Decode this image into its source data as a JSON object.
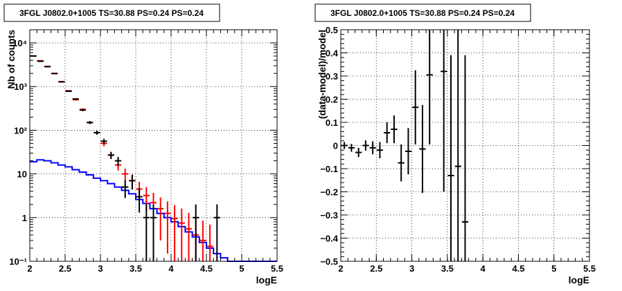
{
  "chart_data": [
    {
      "type": "scatter",
      "title": "3FGL J0802.0+1005 TS=30.88 PS=0.24 PS=0.24",
      "xlabel": "logE",
      "ylabel": "Nb of counts",
      "xlim": [
        2,
        5.5
      ],
      "ylim": [
        0.1,
        20000
      ],
      "yscale": "log",
      "grid": true,
      "xticks": [
        "2",
        "2.5",
        "3",
        "3.5",
        "4",
        "4.5",
        "5",
        "5.5"
      ],
      "yticks": [
        {
          "value": 0.1,
          "label": "10⁻¹"
        },
        {
          "value": 1,
          "label": "1"
        },
        {
          "value": 10,
          "label": "10"
        },
        {
          "value": 100,
          "label": "10²"
        },
        {
          "value": 1000,
          "label": "10³"
        },
        {
          "value": 10000,
          "label": "10⁴"
        }
      ],
      "series": [
        {
          "color": "#0000ff",
          "style": "step",
          "x": [
            2.0,
            2.1,
            2.2,
            2.3,
            2.4,
            2.5,
            2.6,
            2.7,
            2.8,
            2.9,
            3.0,
            3.1,
            3.2,
            3.3,
            3.4,
            3.5,
            3.6,
            3.7,
            3.8,
            3.9,
            4.0,
            4.1,
            4.2,
            4.3,
            4.4,
            4.5,
            4.6,
            4.7,
            4.8,
            4.9,
            5.0,
            5.1,
            5.2,
            5.3,
            5.4
          ],
          "values": [
            19,
            21,
            20,
            18,
            16,
            14.5,
            12.5,
            11,
            9.5,
            8,
            7,
            6,
            5,
            4.2,
            3.5,
            2.6,
            2.1,
            1.6,
            1.25,
            1.0,
            0.8,
            0.62,
            0.47,
            0.36,
            0.27,
            0.2,
            0.15,
            0.12,
            0.1,
            0.1,
            0.1,
            0.1,
            0.1,
            0.1,
            0.1
          ]
        },
        {
          "color": "#ff0000",
          "style": "errorbar",
          "x": [
            2.05,
            2.15,
            2.25,
            2.35,
            2.45,
            2.55,
            2.65,
            2.75,
            2.85,
            2.95,
            3.05,
            3.15,
            3.25,
            3.35,
            3.45,
            3.55,
            3.65,
            3.75,
            3.85,
            3.95,
            4.05,
            4.15,
            4.25,
            4.35,
            4.45,
            4.55
          ],
          "values": [
            5000,
            3900,
            2900,
            2000,
            1300,
            800,
            500,
            300,
            150,
            88,
            50,
            27,
            16,
            10,
            7,
            4.5,
            3.2,
            2.2,
            1.6,
            1.25,
            0.95,
            0.75,
            0.55,
            0.4,
            0.3,
            0.22
          ],
          "errors": [
            70,
            62,
            54,
            45,
            36,
            28,
            22,
            17,
            12,
            9,
            7,
            5,
            4,
            3.2,
            2.6,
            2.1,
            1.8,
            1.5,
            1.3,
            1.1,
            0.98,
            0.87,
            0.74,
            0.63,
            0.55,
            0.47
          ]
        },
        {
          "color": "#000000",
          "style": "errorbar",
          "x": [
            2.05,
            2.15,
            2.25,
            2.35,
            2.45,
            2.55,
            2.65,
            2.75,
            2.85,
            2.95,
            3.05,
            3.15,
            3.25,
            3.35,
            3.45,
            3.55,
            3.65,
            3.75,
            4.35,
            4.65
          ],
          "values": [
            5000,
            3800,
            2850,
            1980,
            1280,
            780,
            520,
            290,
            150,
            88,
            56,
            27,
            20,
            5,
            7,
            3,
            1,
            1,
            1,
            1
          ],
          "errors": [
            70,
            62,
            53,
            44,
            36,
            28,
            23,
            17,
            12,
            9,
            7.5,
            5,
            4.5,
            2.2,
            2.6,
            1.7,
            1,
            1,
            1,
            1
          ]
        }
      ]
    },
    {
      "type": "scatter",
      "title": "3FGL J0802.0+1005 TS=30.88 PS=0.24 PS=0.24",
      "xlabel": "logE",
      "ylabel": "(data-model)/model",
      "xlim": [
        2,
        5.5
      ],
      "ylim": [
        -0.5,
        0.5
      ],
      "grid": true,
      "xticks": [
        "2",
        "2.5",
        "3",
        "3.5",
        "4",
        "4.5",
        "5",
        "5.5"
      ],
      "yticks": [
        "−0.5",
        "−0.4",
        "−0.3",
        "−0.2",
        "−0.1",
        "0",
        "0.1",
        "0.2",
        "0.3",
        "0.4",
        "0.5"
      ],
      "series": [
        {
          "color": "#000000",
          "style": "errorbar",
          "x": [
            2.05,
            2.15,
            2.25,
            2.35,
            2.45,
            2.55,
            2.65,
            2.75,
            2.85,
            2.95,
            3.05,
            3.15,
            3.25,
            3.45,
            3.55,
            3.65,
            3.75
          ],
          "values": [
            0.0,
            -0.01,
            -0.03,
            0.0,
            -0.01,
            -0.02,
            0.055,
            0.07,
            -0.075,
            -0.025,
            0.165,
            -0.015,
            0.305,
            0.32,
            -0.13,
            -0.09,
            -0.33
          ],
          "errors": [
            0.015,
            0.017,
            0.02,
            0.022,
            0.028,
            0.035,
            0.045,
            0.06,
            0.08,
            0.1,
            0.16,
            0.19,
            0.3,
            0.52,
            0.52,
            0.62,
            0.72
          ]
        }
      ]
    }
  ]
}
